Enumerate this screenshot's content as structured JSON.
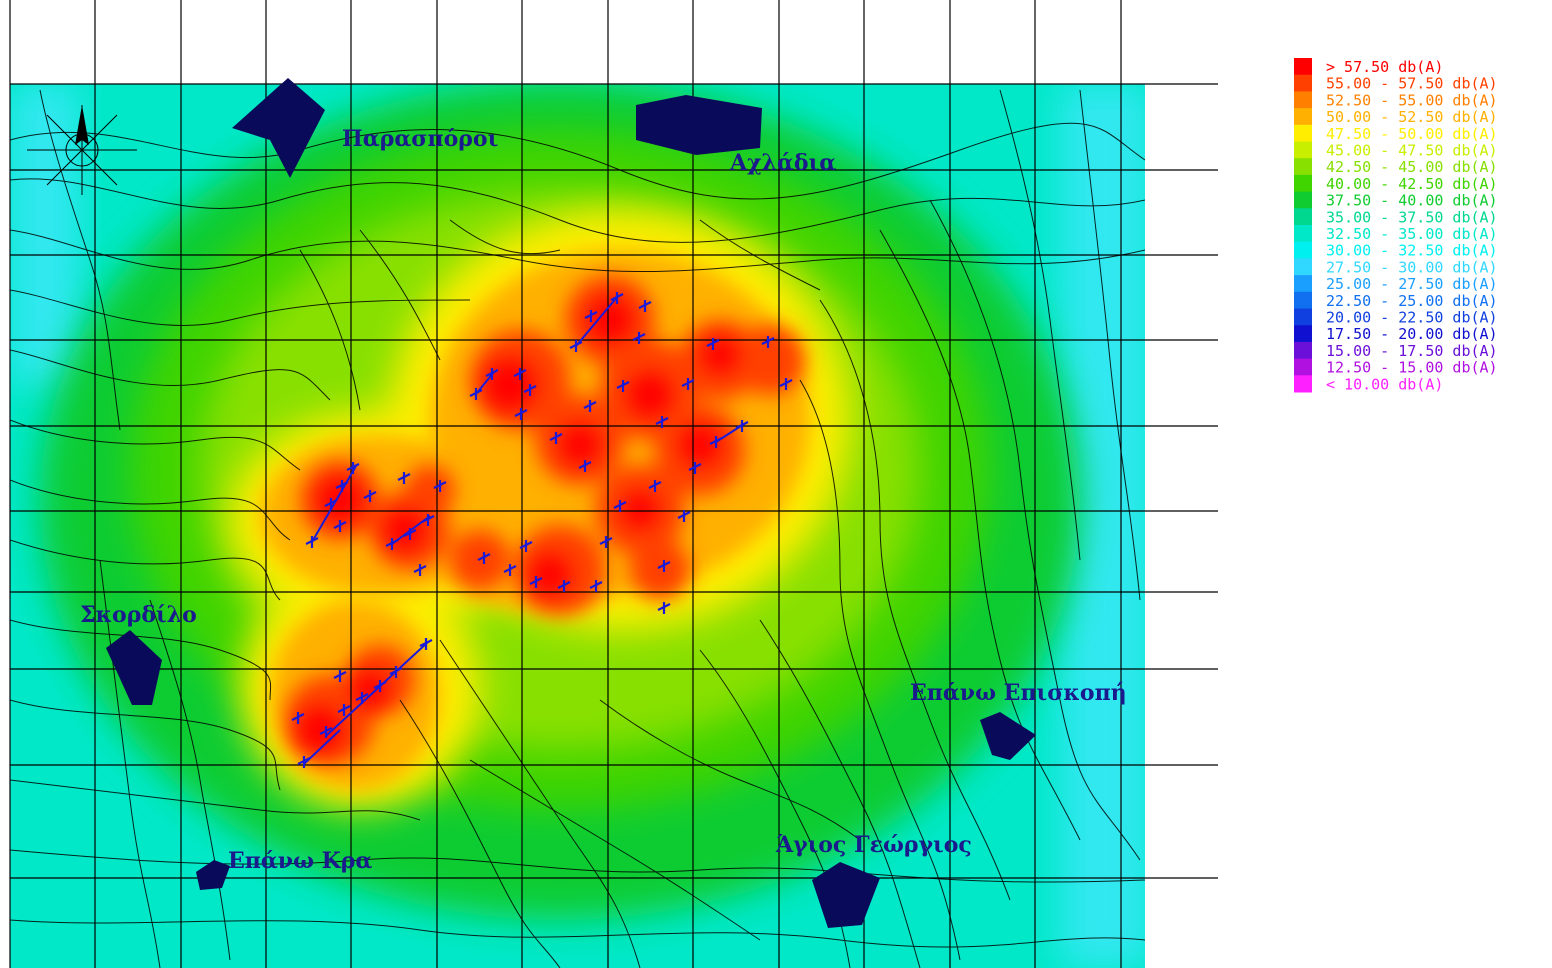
{
  "legend": {
    "unit": "db(A)",
    "items": [
      {
        "label": ">  57.50  db(A)",
        "color": "#ff0000"
      },
      {
        "label": "55.00  -  57.50  db(A)",
        "color": "#ff4000"
      },
      {
        "label": "52.50  -  55.00  db(A)",
        "color": "#ff8000"
      },
      {
        "label": "50.00  -  52.50  db(A)",
        "color": "#ffb000"
      },
      {
        "label": "47.50  -  50.00  db(A)",
        "color": "#ffee00"
      },
      {
        "label": "45.00  -  47.50  db(A)",
        "color": "#c8ee00"
      },
      {
        "label": "42.50  -  45.00  db(A)",
        "color": "#88e000"
      },
      {
        "label": "40.00  -  42.50  db(A)",
        "color": "#40d400"
      },
      {
        "label": "37.50  -  40.00  db(A)",
        "color": "#10cc30"
      },
      {
        "label": "35.00  -  37.50  db(A)",
        "color": "#00d890"
      },
      {
        "label": "32.50  -  35.00  db(A)",
        "color": "#00e8c8"
      },
      {
        "label": "30.00  -  32.50  db(A)",
        "color": "#00f0f0"
      },
      {
        "label": "27.50  -  30.00  db(A)",
        "color": "#30d8ff"
      },
      {
        "label": "25.00  -  27.50  db(A)",
        "color": "#1a9fff"
      },
      {
        "label": "22.50  -  25.00  db(A)",
        "color": "#1070f0"
      },
      {
        "label": "20.00  -  22.50  db(A)",
        "color": "#1040e0"
      },
      {
        "label": "17.50  -  20.00  db(A)",
        "color": "#1010d0"
      },
      {
        "label": "15.00  -  17.50  db(A)",
        "color": "#6a10d8"
      },
      {
        "label": "12.50  -  15.00  db(A)",
        "color": "#b010e0"
      },
      {
        "label": "<  10.00  db(A)",
        "color": "#ff20ff"
      }
    ]
  },
  "places": {
    "parasporoi": "Παρασπόροι",
    "achladia": "Αχλάδια",
    "skordilo": "Σκορδίλο",
    "epano_episkopi": "Επάνω Επισκοπή",
    "agios_georgios": "Άγιος Γεώργιος",
    "epano_kra": "Επάνω Κρα"
  },
  "colors": {
    "village": "#0a0a5a",
    "grid": "#000000",
    "turbine": "#1a1ad8",
    "label": "#1a1a8c"
  }
}
